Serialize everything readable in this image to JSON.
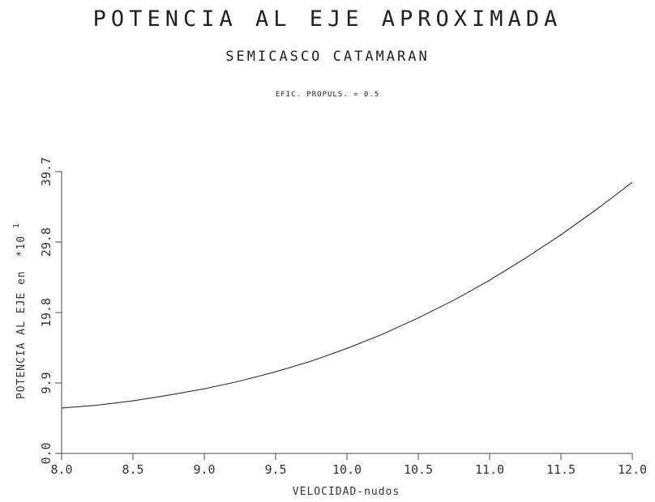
{
  "chart_data": {
    "type": "line",
    "title": "POTENCIA AL EJE APROXIMADA",
    "subtitle": "SEMICASCO CATAMARAN",
    "annotation": "EFIC. PROPULS. = 0.5",
    "xlabel": "VELOCIDAD-nudos",
    "ylabel": "POTENCIA AL EJE en",
    "ylabel_multiplier": "*10",
    "ylabel_exponent": "1",
    "xlim": [
      8.0,
      12.0
    ],
    "ylim": [
      0.0,
      39.7
    ],
    "xticks": [
      "8.0",
      "8.5",
      "9.0",
      "9.5",
      "10.0",
      "10.5",
      "11.0",
      "11.5",
      "12.0"
    ],
    "yticks": [
      "0.0",
      "9.9",
      "19.8",
      "29.8",
      "39.7"
    ],
    "grid": false,
    "series": [
      {
        "x": [
          8.0,
          8.25,
          8.5,
          8.75,
          9.0,
          9.25,
          9.5,
          9.75,
          10.0,
          10.25,
          10.5,
          10.75,
          11.0,
          11.25,
          11.5,
          11.75,
          12.0
        ],
        "y": [
          6.4,
          6.8,
          7.4,
          8.2,
          9.1,
          10.2,
          11.5,
          13.0,
          14.8,
          16.8,
          19.1,
          21.6,
          24.4,
          27.5,
          30.8,
          34.4,
          38.2
        ],
        "color": "#333333"
      }
    ]
  }
}
